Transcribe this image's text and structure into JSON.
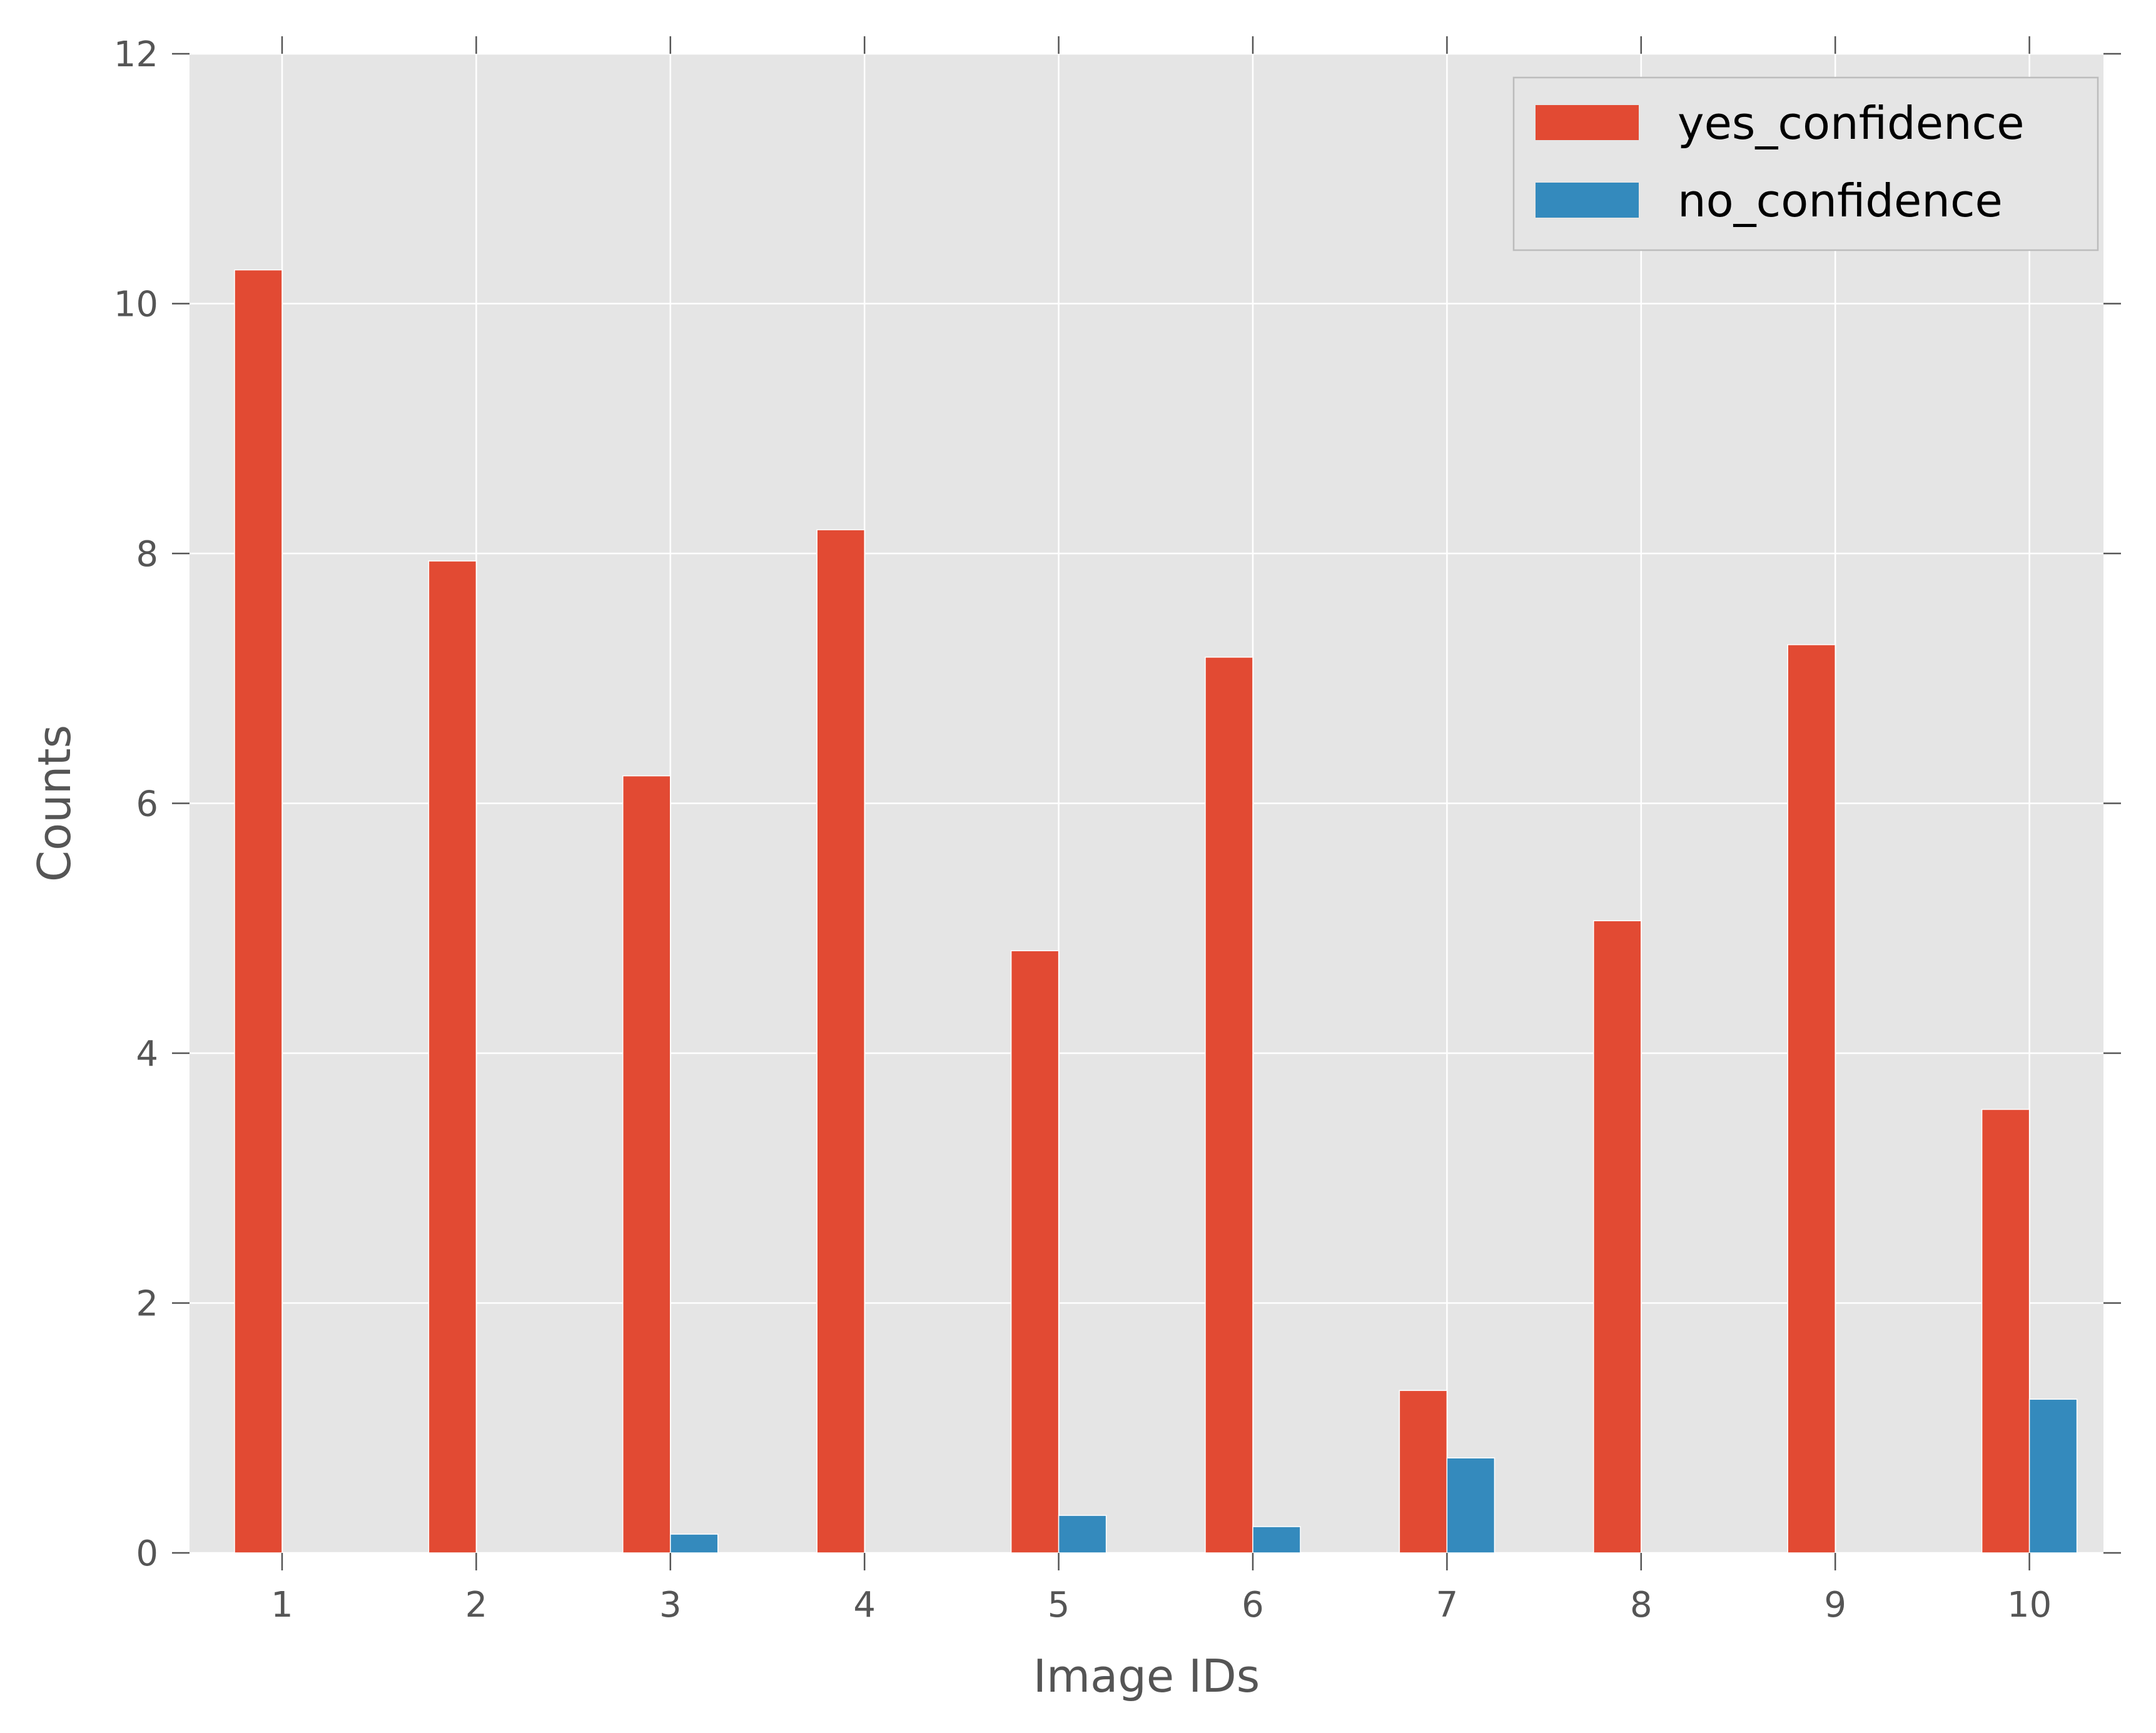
{
  "chart_data": {
    "type": "bar",
    "xlabel": "Image IDs",
    "ylabel": "Counts",
    "categories": [
      "1",
      "2",
      "3",
      "4",
      "5",
      "6",
      "7",
      "8",
      "9",
      "10"
    ],
    "ylim": [
      0,
      12
    ],
    "yticks": [
      "0",
      "2",
      "4",
      "6",
      "8",
      "10",
      "12"
    ],
    "grid": true,
    "legend_position": "top-right",
    "background_color": "#e5e5e5",
    "grid_color": "#ffffff",
    "series": [
      {
        "name": "yes_confidence",
        "color": "#e24a33",
        "values": [
          10.27,
          7.94,
          6.22,
          8.19,
          4.82,
          7.17,
          1.3,
          5.06,
          7.27,
          3.55
        ]
      },
      {
        "name": "no_confidence",
        "color": "#348abd",
        "values": [
          0,
          0,
          0.15,
          0,
          0.3,
          0.21,
          0.76,
          0,
          0,
          1.23
        ]
      }
    ]
  }
}
